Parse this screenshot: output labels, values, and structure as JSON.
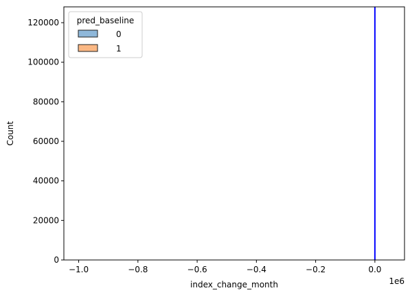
{
  "chart_data": {
    "type": "histogram",
    "title": "",
    "xlabel": "index_change_month",
    "ylabel": "Count",
    "x_offset_label": "1e6",
    "x_scale_multiplier": 1000000,
    "xlim": [
      -1.05,
      0.1
    ],
    "ylim": [
      0,
      128000
    ],
    "x_ticks": [
      -1.0,
      -0.8,
      -0.6,
      -0.4,
      -0.2,
      0.0
    ],
    "x_tick_labels": [
      "−1.0",
      "−0.8",
      "−0.6",
      "−0.4",
      "−0.2",
      "0.0"
    ],
    "y_ticks": [
      0,
      20000,
      40000,
      60000,
      80000,
      100000,
      120000
    ],
    "y_tick_labels": [
      "0",
      "20000",
      "40000",
      "60000",
      "80000",
      "100000",
      "120000"
    ],
    "grid": false,
    "legend": {
      "title": "pred_baseline",
      "placement": "top-left",
      "entries": [
        {
          "label": "0",
          "color": "#8fb8da",
          "edge": "#1f1f1f"
        },
        {
          "label": "1",
          "color": "#fbb884",
          "edge": "#1f1f1f"
        }
      ]
    },
    "series": [
      {
        "name": "0",
        "color": "#1f77b4",
        "bins": [
          {
            "x": 0.0,
            "count": 128000
          }
        ]
      },
      {
        "name": "1",
        "color": "#ff7f0e",
        "bins": [
          {
            "x": 0.0,
            "count": 128000
          }
        ]
      }
    ],
    "vertical_lines": [
      {
        "x": 0.0,
        "color": "#0000ff"
      }
    ]
  }
}
